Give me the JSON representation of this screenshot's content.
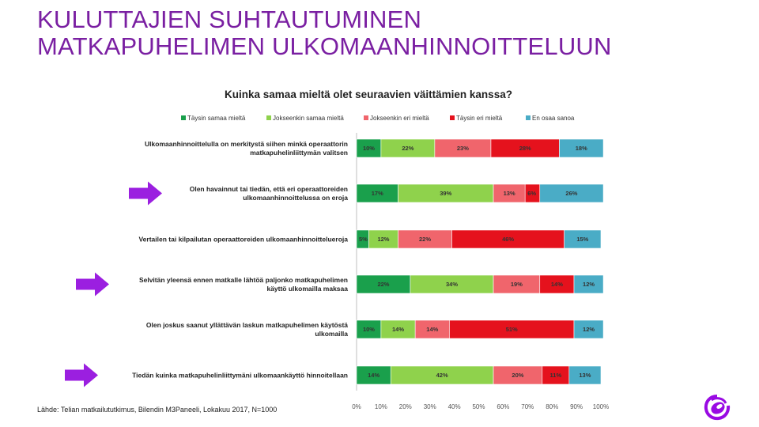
{
  "slide": {
    "title_line1": "KULUTTAJIEN SUHTAUTUMINEN",
    "title_line2": "MATKAPUHELIMEN ULKOMAANHINNOITTELUUN",
    "source": "Lähde: Telian matkailututkimus, Bilendin M3Paneeli, Lokakuu 2017, N=1000"
  },
  "chart_data": {
    "type": "bar",
    "orientation": "horizontal",
    "stacked": true,
    "title": "Kuinka samaa mieltä olet seuraavien väittämien kanssa?",
    "xlim": [
      0,
      100
    ],
    "xticks": [
      "0%",
      "10%",
      "20%",
      "30%",
      "40%",
      "50%",
      "60%",
      "70%",
      "80%",
      "90%",
      "100%"
    ],
    "legend_position": "top",
    "categories": [
      [
        "Ulkomaanhinnoittelulla on merkitystä siihen minkä operaattorin",
        "matkapuhelinliittymän valitsen"
      ],
      [
        "Olen havainnut tai tiedän, että eri operaattoreiden",
        "ulkomaanhinnoittelussa on eroja"
      ],
      [
        "Vertailen tai kilpailutan operaattoreiden ulkomaanhinnoittelueroja"
      ],
      [
        "Selvitän yleensä ennen matkalle lähtöä paljonko matkapuhelimen",
        "käyttö ulkomailla maksaa"
      ],
      [
        "Olen joskus saanut yllättävän laskun matkapuhelimen käytöstä",
        "ulkomailla"
      ],
      [
        "Tiedän kuinka matkapuhelinliittymäni ulkomaankäyttö hinnoitellaan"
      ]
    ],
    "highlighted": [
      false,
      true,
      false,
      true,
      false,
      true
    ],
    "series": [
      {
        "name": "Täysin samaa mieltä",
        "color": "#1aa04c",
        "values": [
          10,
          17,
          5,
          22,
          10,
          14
        ]
      },
      {
        "name": "Jokseenkin samaa mieltä",
        "color": "#8fd24c",
        "values": [
          22,
          39,
          12,
          34,
          14,
          42
        ]
      },
      {
        "name": "Jokseenkin eri mieltä",
        "color": "#f0656c",
        "values": [
          23,
          13,
          22,
          19,
          14,
          20
        ]
      },
      {
        "name": "Täysin eri mieltä",
        "color": "#e5121d",
        "values": [
          28,
          6,
          46,
          14,
          51,
          11
        ]
      },
      {
        "name": "En osaa sanoa",
        "color": "#4aacc6",
        "values": [
          18,
          26,
          15,
          12,
          12,
          13
        ]
      }
    ]
  },
  "colors": {
    "title": "#7a1fa2",
    "arrow": "#9b1fe0"
  }
}
